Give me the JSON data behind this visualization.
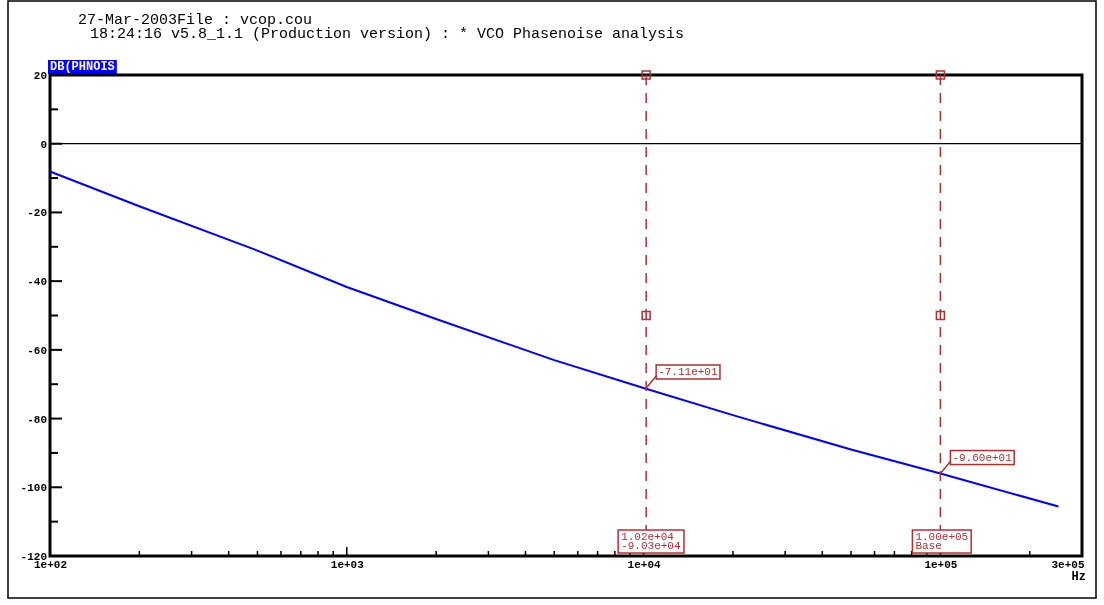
{
  "chart_data": {
    "type": "line",
    "title": "27-Mar-2003File : vcop.cou",
    "subtitle": "18:24:16 v5.8_1.1 (Production version) : * VCO Phasenoise analysis",
    "ylabel": "DB(PHNOIS",
    "xlabel": "Hz",
    "log": "x",
    "x": [
      100,
      200,
      500,
      1000,
      2000,
      5000,
      10000,
      20000,
      50000,
      100000,
      250000
    ],
    "series": [
      {
        "color": "#0000ff",
        "values": [
          -8.1,
          -18.2,
          -31.1,
          -41.7,
          -51,
          -63,
          -71.1,
          -79,
          -89,
          -96,
          -105.6
        ]
      }
    ],
    "xlim": [
      100,
      300000
    ],
    "xticks": [
      {
        "value": 100,
        "label": "1e+02"
      },
      {
        "value": 200,
        "label": null
      },
      {
        "value": 300,
        "label": null
      },
      {
        "value": 400,
        "label": null
      },
      {
        "value": 500,
        "label": null
      },
      {
        "value": 600,
        "label": null
      },
      {
        "value": 700,
        "label": null
      },
      {
        "value": 800,
        "label": null
      },
      {
        "value": 900,
        "label": null
      },
      {
        "value": 1000,
        "label": "1e+03"
      },
      {
        "value": 2000,
        "label": null
      },
      {
        "value": 3000,
        "label": null
      },
      {
        "value": 4000,
        "label": null
      },
      {
        "value": 5000,
        "label": null
      },
      {
        "value": 6000,
        "label": null
      },
      {
        "value": 7000,
        "label": null
      },
      {
        "value": 8000,
        "label": null
      },
      {
        "value": 9000,
        "label": null
      },
      {
        "value": 10000,
        "label": "1e+04"
      },
      {
        "value": 20000,
        "label": null
      },
      {
        "value": 30000,
        "label": null
      },
      {
        "value": 40000,
        "label": null
      },
      {
        "value": 50000,
        "label": null
      },
      {
        "value": 60000,
        "label": null
      },
      {
        "value": 70000,
        "label": null
      },
      {
        "value": 80000,
        "label": null
      },
      {
        "value": 90000,
        "label": null
      },
      {
        "value": 100000,
        "label": "1e+05"
      },
      {
        "value": 200000,
        "label": null
      },
      {
        "value": 300000,
        "label": "3e+05"
      }
    ],
    "ylim": [
      -120,
      20
    ],
    "yticks": [
      20,
      {
        "value": 10,
        "label": null
      },
      0,
      {
        "value": -10,
        "label": null
      },
      -20,
      {
        "value": -30,
        "label": null
      },
      -40,
      {
        "value": -50,
        "label": null
      },
      -60,
      {
        "value": -70,
        "label": null
      },
      -80,
      {
        "value": -90,
        "label": null
      },
      -100,
      {
        "value": -110,
        "label": null
      },
      -120
    ],
    "grid": false,
    "marker": "none",
    "line_style": "solid",
    "ref_lines": [
      {
        "axis": "y",
        "value": 0,
        "label": null,
        "color": "#000000",
        "line_style": "solid"
      },
      {
        "axis": "x",
        "value": 10200,
        "label": "1.02e+04\n-9.03e+04",
        "color": "#b03030",
        "line_style": "dashed"
      },
      {
        "axis": "x",
        "value": 100000,
        "label": "1.00e+05\nBase",
        "color": "#b03030",
        "line_style": "dashed"
      }
    ],
    "annotations": [
      {
        "text": "-7.11e+01",
        "x": 10200,
        "y": -71.1
      },
      {
        "text": "-9.60e+01",
        "x": 100000,
        "y": -96
      }
    ]
  }
}
